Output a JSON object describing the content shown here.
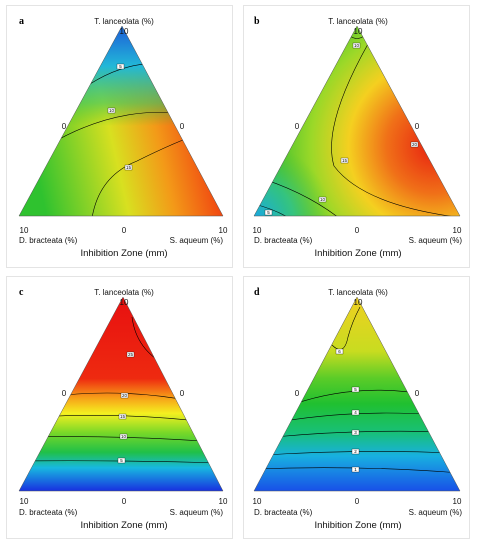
{
  "chart_data": [
    {
      "panel": "a",
      "type": "heatmap",
      "vertex_labels": {
        "top": "T. lanceolata (%)",
        "left": "D. bracteata (%)",
        "right": "S. aqueum (%)"
      },
      "ticks": {
        "top": "10",
        "left_mid": "0",
        "right_mid": "0",
        "bottom_left": "10",
        "bottom_mid": "0",
        "bottom_right": "10"
      },
      "xlabel": "Inhibition Zone (mm)",
      "colors": {
        "top": "#1e6fd8",
        "left": "#2fc22f",
        "right": "#f03a10"
      },
      "contours": [
        {
          "label": "5"
        },
        {
          "label": "10"
        },
        {
          "label": "15"
        }
      ]
    },
    {
      "panel": "b",
      "type": "heatmap",
      "vertex_labels": {
        "top": "T. lanceolata (%)",
        "left": "D. bracteata (%)",
        "right": "S. aqueum (%)"
      },
      "ticks": {
        "top": "10",
        "left_mid": "0",
        "right_mid": "0",
        "bottom_left": "10",
        "bottom_mid": "0",
        "bottom_right": "10"
      },
      "xlabel": "Inhibition Zone (mm)",
      "colors": {
        "top": "#40c030",
        "left": "#1aa8e0",
        "right": "#e82010"
      },
      "contours": [
        {
          "label": "10"
        },
        {
          "label": "5"
        },
        {
          "label": "10"
        },
        {
          "label": "15"
        },
        {
          "label": "20"
        }
      ]
    },
    {
      "panel": "c",
      "type": "heatmap",
      "vertex_labels": {
        "top": "T. lanceolata (%)",
        "left": "D. bracteata (%)",
        "right": "S. aqueum (%)"
      },
      "ticks": {
        "top": "10",
        "left_mid": "0",
        "right_mid": "0",
        "bottom_left": "10",
        "bottom_mid": "0",
        "bottom_right": "10"
      },
      "xlabel": "Inhibition Zone (mm)",
      "colors": {
        "top": "#e81010",
        "bottom": "#1830e0"
      },
      "contours": [
        {
          "label": "25"
        },
        {
          "label": "20"
        },
        {
          "label": "15"
        },
        {
          "label": "10"
        },
        {
          "label": "5"
        }
      ]
    },
    {
      "panel": "d",
      "type": "heatmap",
      "vertex_labels": {
        "top": "T. lanceolata (%)",
        "left": "D. bracteata (%)",
        "right": "S. aqueum (%)"
      },
      "ticks": {
        "top": "10",
        "left_mid": "0",
        "right_mid": "0",
        "bottom_left": "10",
        "bottom_mid": "0",
        "bottom_right": "10"
      },
      "xlabel": "Inhibition Zone (mm)",
      "colors": {
        "top": "#f0d020",
        "bottom": "#1850e8"
      },
      "contours": [
        {
          "label": "6"
        },
        {
          "label": "5"
        },
        {
          "label": "4"
        },
        {
          "label": "3"
        },
        {
          "label": "2"
        },
        {
          "label": "1"
        }
      ]
    }
  ]
}
